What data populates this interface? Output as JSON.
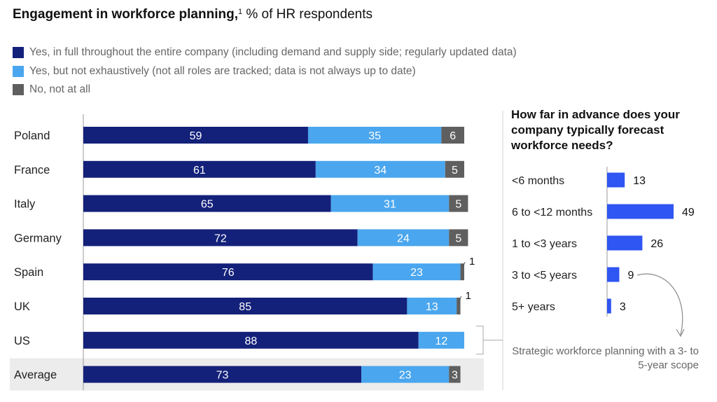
{
  "title": {
    "bold": "Engagement in workforce planning,",
    "footnote": "1",
    "rest": " % of HR respondents"
  },
  "legend": [
    {
      "label": "Yes, in full throughout the entire company (including demand and supply side; regularly updated data)",
      "color": "#14217a"
    },
    {
      "label": "Yes, but not exhaustively (not all roles are tracked; data is not always up to date)",
      "color": "#4aa6ee"
    },
    {
      "label": "No, not at all",
      "color": "#5f5f5f"
    }
  ],
  "chart_data": [
    {
      "type": "bar",
      "orientation": "horizontal",
      "stacked": true,
      "title": "Engagement in workforce planning, % of HR respondents",
      "categories": [
        "Poland",
        "France",
        "Italy",
        "Germany",
        "Spain",
        "UK",
        "US",
        "Average"
      ],
      "series": [
        {
          "name": "Yes, in full throughout the entire company (including demand and supply side; regularly updated data)",
          "values": [
            59,
            61,
            65,
            72,
            76,
            85,
            88,
            73
          ],
          "color": "#14217a"
        },
        {
          "name": "Yes, but not exhaustively (not all roles are tracked; data is not always up to date)",
          "values": [
            35,
            34,
            31,
            24,
            23,
            13,
            12,
            23
          ],
          "color": "#4aa6ee"
        },
        {
          "name": "No, not at all",
          "values": [
            6,
            5,
            5,
            5,
            1,
            1,
            0,
            3
          ],
          "color": "#5f5f5f"
        }
      ],
      "xlim": [
        0,
        100
      ],
      "highlighted_category": "Average"
    },
    {
      "type": "bar",
      "orientation": "horizontal",
      "title": "How far in advance does your company typically forecast workforce needs?",
      "categories": [
        "<6 months",
        "6 to <12 months",
        "1 to <3 years",
        "3 to <5 years",
        "5+ years"
      ],
      "values": [
        13,
        49,
        26,
        9,
        3
      ],
      "color": "#2f55f2",
      "annotation": "Strategic workforce planning with a 3- to 5-year scope"
    }
  ]
}
